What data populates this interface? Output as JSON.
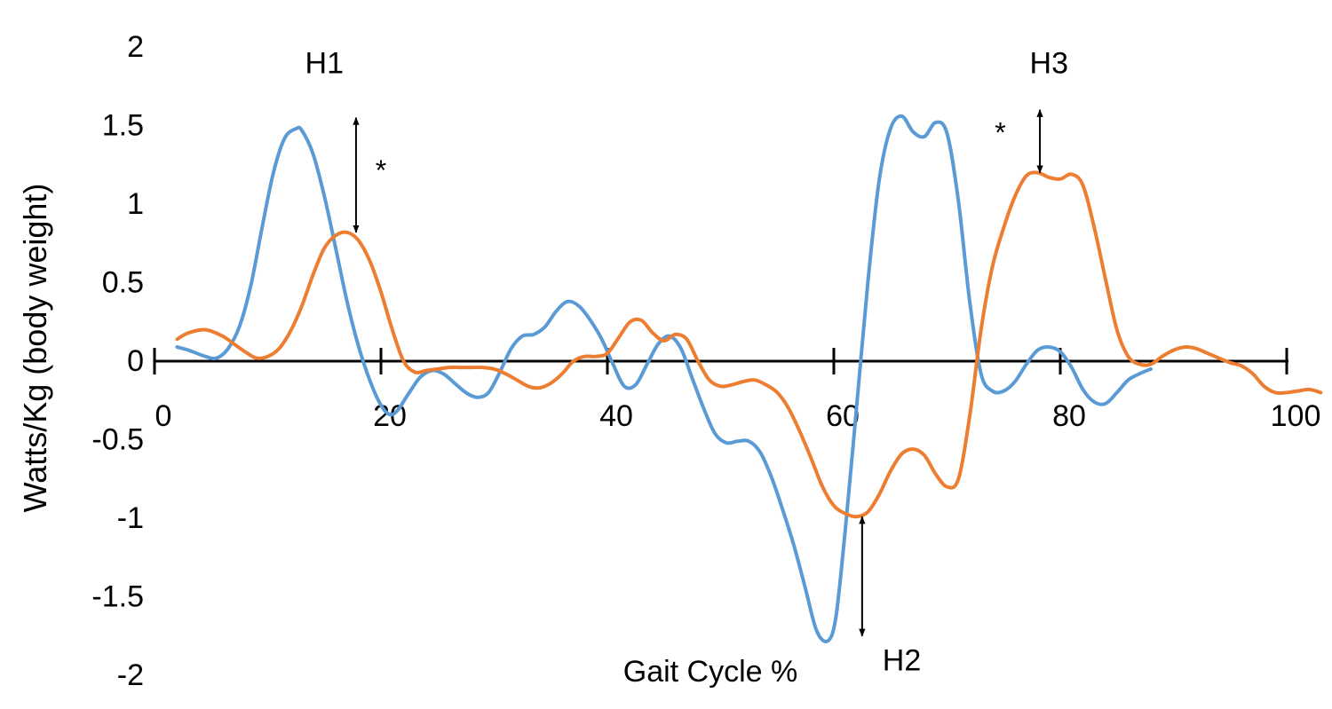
{
  "chart_data": {
    "type": "line",
    "xlabel": "Gait Cycle %",
    "ylabel": "Watts/Kg (body weight)",
    "xlim": [
      0,
      100
    ],
    "ylim": [
      -2,
      2
    ],
    "xticks": [
      "0",
      "20",
      "40",
      "60",
      "80",
      "100"
    ],
    "yticks": [
      "2",
      "1.5",
      "1",
      "0.5",
      "0",
      "-0.5",
      "-1",
      "-1.5",
      "-2"
    ],
    "grid": false,
    "legend": "none",
    "series": [
      {
        "color": "#5b9bd5",
        "x": [
          2,
          3,
          4.5,
          5.5,
          6.5,
          7.5,
          8.5,
          9.5,
          10.5,
          11.5,
          12.5,
          13,
          14,
          15,
          16,
          17,
          18,
          19,
          20,
          20.8,
          21.5,
          22.5,
          23.5,
          24.5,
          25.5,
          26.5,
          27.5,
          28.5,
          29.5,
          30.5,
          31.5,
          32.5,
          33.5,
          34.5,
          35.5,
          36.5,
          37.5,
          38.5,
          39.5,
          40.5,
          41.5,
          42.5,
          43.5,
          44.5,
          45.5,
          46.5,
          47.5,
          48.5,
          49.5,
          50.5,
          51.5,
          52.5,
          53.5,
          54.5,
          55.5,
          56.5,
          57.5,
          58.5,
          59.5,
          60.2,
          61,
          62,
          63,
          64,
          65,
          66,
          67,
          68,
          69,
          70,
          71,
          72,
          73,
          74,
          75,
          76,
          77,
          78,
          79,
          80,
          81,
          82,
          83,
          84,
          85,
          86,
          87,
          88
        ],
        "y": [
          0.09,
          0.07,
          0.03,
          0.02,
          0.08,
          0.22,
          0.48,
          0.85,
          1.2,
          1.42,
          1.48,
          1.47,
          1.32,
          1.05,
          0.72,
          0.38,
          0.1,
          -0.12,
          -0.28,
          -0.34,
          -0.31,
          -0.2,
          -0.1,
          -0.06,
          -0.08,
          -0.14,
          -0.2,
          -0.23,
          -0.2,
          -0.07,
          0.08,
          0.16,
          0.17,
          0.22,
          0.32,
          0.38,
          0.35,
          0.26,
          0.14,
          -0.02,
          -0.16,
          -0.15,
          -0.02,
          0.11,
          0.16,
          0.08,
          -0.11,
          -0.3,
          -0.46,
          -0.52,
          -0.51,
          -0.51,
          -0.58,
          -0.74,
          -0.95,
          -1.18,
          -1.45,
          -1.72,
          -1.78,
          -1.62,
          -1.08,
          -0.3,
          0.5,
          1.15,
          1.48,
          1.56,
          1.46,
          1.43,
          1.52,
          1.45,
          1.02,
          0.38,
          -0.08,
          -0.19,
          -0.19,
          -0.13,
          -0.02,
          0.07,
          0.09,
          0.06,
          -0.04,
          -0.18,
          -0.26,
          -0.27,
          -0.2,
          -0.12,
          -0.08,
          -0.05
        ]
      },
      {
        "color": "#ed7d31",
        "x": [
          2,
          3,
          4.5,
          6,
          7,
          8,
          9,
          10,
          11,
          12,
          13,
          14,
          15,
          16,
          17,
          18,
          19,
          20,
          21,
          22,
          23,
          24,
          25,
          26,
          27,
          28,
          29,
          30,
          31,
          32,
          33,
          34,
          35,
          36,
          37,
          38,
          39,
          40,
          41,
          42,
          43,
          44,
          45,
          46,
          47,
          48,
          49,
          50,
          51,
          52,
          53,
          54,
          55,
          56,
          57,
          58,
          59,
          60,
          61,
          62,
          63,
          64,
          65,
          66,
          67,
          68,
          69,
          70,
          71,
          72,
          73,
          74,
          75,
          76,
          77,
          78,
          79,
          80,
          81,
          82,
          83,
          84,
          85,
          86,
          87,
          88,
          89,
          90,
          91,
          92,
          93,
          94,
          95,
          96,
          97,
          98,
          99,
          100,
          101,
          102,
          103
        ],
        "y": [
          0.14,
          0.18,
          0.2,
          0.16,
          0.11,
          0.06,
          0.02,
          0.03,
          0.08,
          0.19,
          0.35,
          0.55,
          0.72,
          0.8,
          0.82,
          0.77,
          0.64,
          0.44,
          0.2,
          0.0,
          -0.07,
          -0.06,
          -0.05,
          -0.04,
          -0.04,
          -0.04,
          -0.04,
          -0.05,
          -0.08,
          -0.12,
          -0.16,
          -0.17,
          -0.14,
          -0.08,
          0.0,
          0.03,
          0.03,
          0.05,
          0.15,
          0.25,
          0.26,
          0.18,
          0.13,
          0.17,
          0.14,
          0.0,
          -0.12,
          -0.16,
          -0.15,
          -0.13,
          -0.12,
          -0.15,
          -0.2,
          -0.3,
          -0.45,
          -0.62,
          -0.8,
          -0.92,
          -0.97,
          -0.99,
          -0.96,
          -0.85,
          -0.7,
          -0.59,
          -0.56,
          -0.6,
          -0.72,
          -0.8,
          -0.75,
          -0.35,
          0.2,
          0.6,
          0.85,
          1.05,
          1.18,
          1.2,
          1.17,
          1.16,
          1.19,
          1.12,
          0.85,
          0.52,
          0.2,
          0.03,
          -0.02,
          -0.02,
          0.03,
          0.07,
          0.09,
          0.08,
          0.05,
          0.02,
          -0.01,
          -0.03,
          -0.08,
          -0.16,
          -0.2,
          -0.2,
          -0.19,
          -0.18,
          -0.2
        ]
      }
    ],
    "annotations": [
      {
        "text": "H1",
        "x": 15,
        "y": 1.9
      },
      {
        "text": "H2",
        "x": 66,
        "y": -1.9
      },
      {
        "text": "H3",
        "x": 79,
        "y": 1.9
      },
      {
        "text": "*",
        "x": 20,
        "y": 1.22
      },
      {
        "text": "*",
        "x": 74.7,
        "y": 1.46
      }
    ],
    "arrows": [
      {
        "x": 17.8,
        "y1": 0.82,
        "y2": 1.55
      },
      {
        "x": 78.2,
        "y1": 1.2,
        "y2": 1.6
      },
      {
        "x": 62.5,
        "y1": -0.99,
        "y2": -1.75
      }
    ]
  }
}
